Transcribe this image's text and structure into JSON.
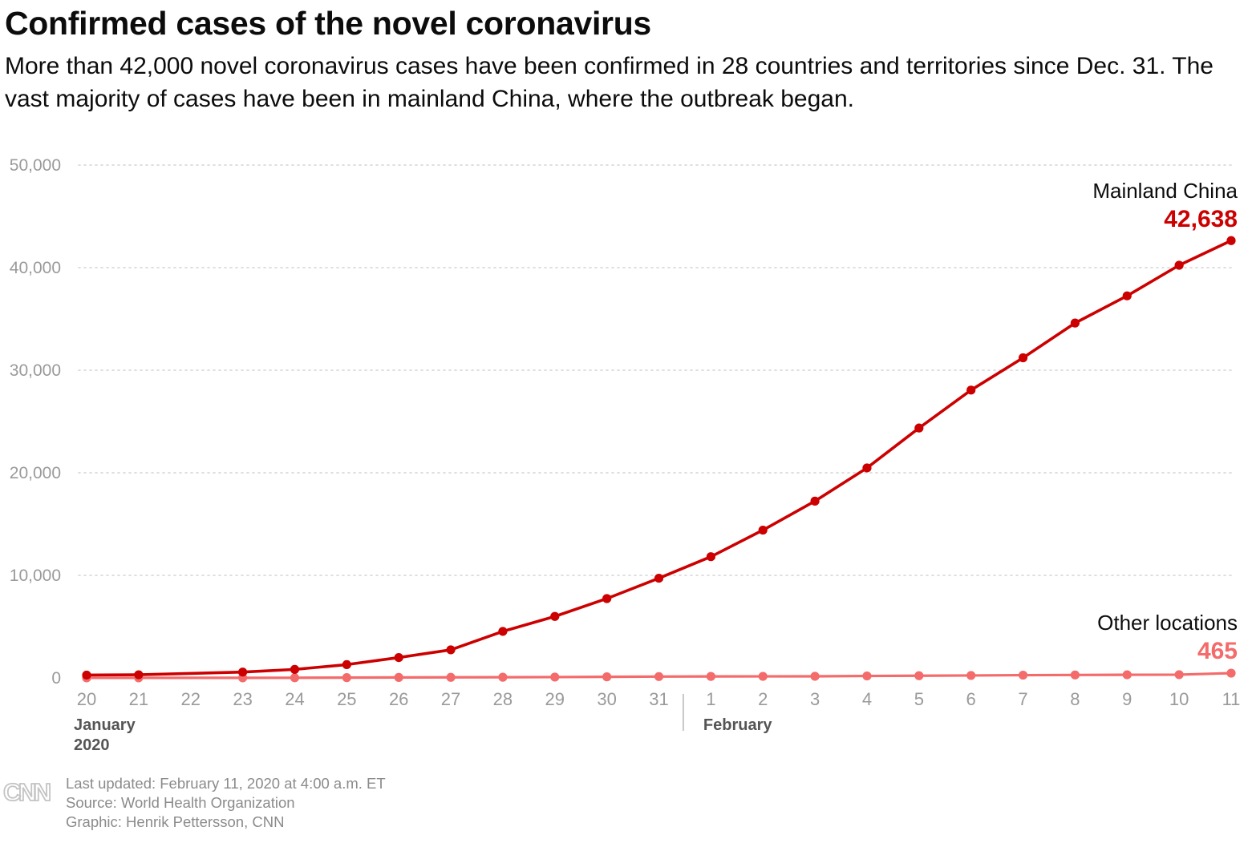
{
  "title": "Confirmed cases of the novel coronavirus",
  "subtitle": "More than 42,000 novel coronavirus cases have been confirmed in 28 countries and territories since Dec. 31. The vast majority of cases have been in mainland China, where the outbreak began.",
  "footer": {
    "updated": "Last updated: February 11, 2020 at 4:00 a.m. ET",
    "source": "Source: World Health Organization",
    "credit": "Graphic: Henrik Pettersson, CNN",
    "logo_text": "CNN"
  },
  "chart_data": {
    "type": "line",
    "x": [
      "Jan 20",
      "Jan 21",
      "Jan 23",
      "Jan 24",
      "Jan 25",
      "Jan 26",
      "Jan 27",
      "Jan 28",
      "Jan 29",
      "Jan 30",
      "Jan 31",
      "Feb 1",
      "Feb 2",
      "Feb 3",
      "Feb 4",
      "Feb 5",
      "Feb 6",
      "Feb 7",
      "Feb 8",
      "Feb 9",
      "Feb 10",
      "Feb 11"
    ],
    "x_ticks": [
      "20",
      "21",
      "22",
      "23",
      "24",
      "25",
      "26",
      "27",
      "28",
      "29",
      "30",
      "31",
      "1",
      "2",
      "3",
      "4",
      "5",
      "6",
      "7",
      "8",
      "9",
      "10",
      "11"
    ],
    "month_labels": [
      {
        "line1": "January",
        "line2": "2020"
      },
      {
        "line1": "February",
        "line2": ""
      }
    ],
    "ylim": [
      0,
      50000
    ],
    "yticks": [
      0,
      10000,
      20000,
      30000,
      40000,
      50000
    ],
    "ytick_labels": [
      "0",
      "10,000",
      "20,000",
      "30,000",
      "40,000",
      "50,000"
    ],
    "grid": "horizontal-dotted",
    "series": [
      {
        "name": "Mainland China",
        "color": "#cc0000",
        "final_label": "42,638",
        "values": [
          278,
          309,
          571,
          830,
          1297,
          1985,
          2741,
          4537,
          5997,
          7736,
          9720,
          11821,
          14411,
          17238,
          20471,
          24363,
          28060,
          31211,
          34598,
          37251,
          40235,
          42638
        ]
      },
      {
        "name": "Other locations",
        "color": "#f46b6b",
        "final_label": "465",
        "values": [
          4,
          5,
          10,
          16,
          29,
          48,
          56,
          68,
          82,
          106,
          132,
          146,
          153,
          159,
          191,
          216,
          240,
          270,
          288,
          307,
          319,
          465
        ]
      }
    ]
  }
}
